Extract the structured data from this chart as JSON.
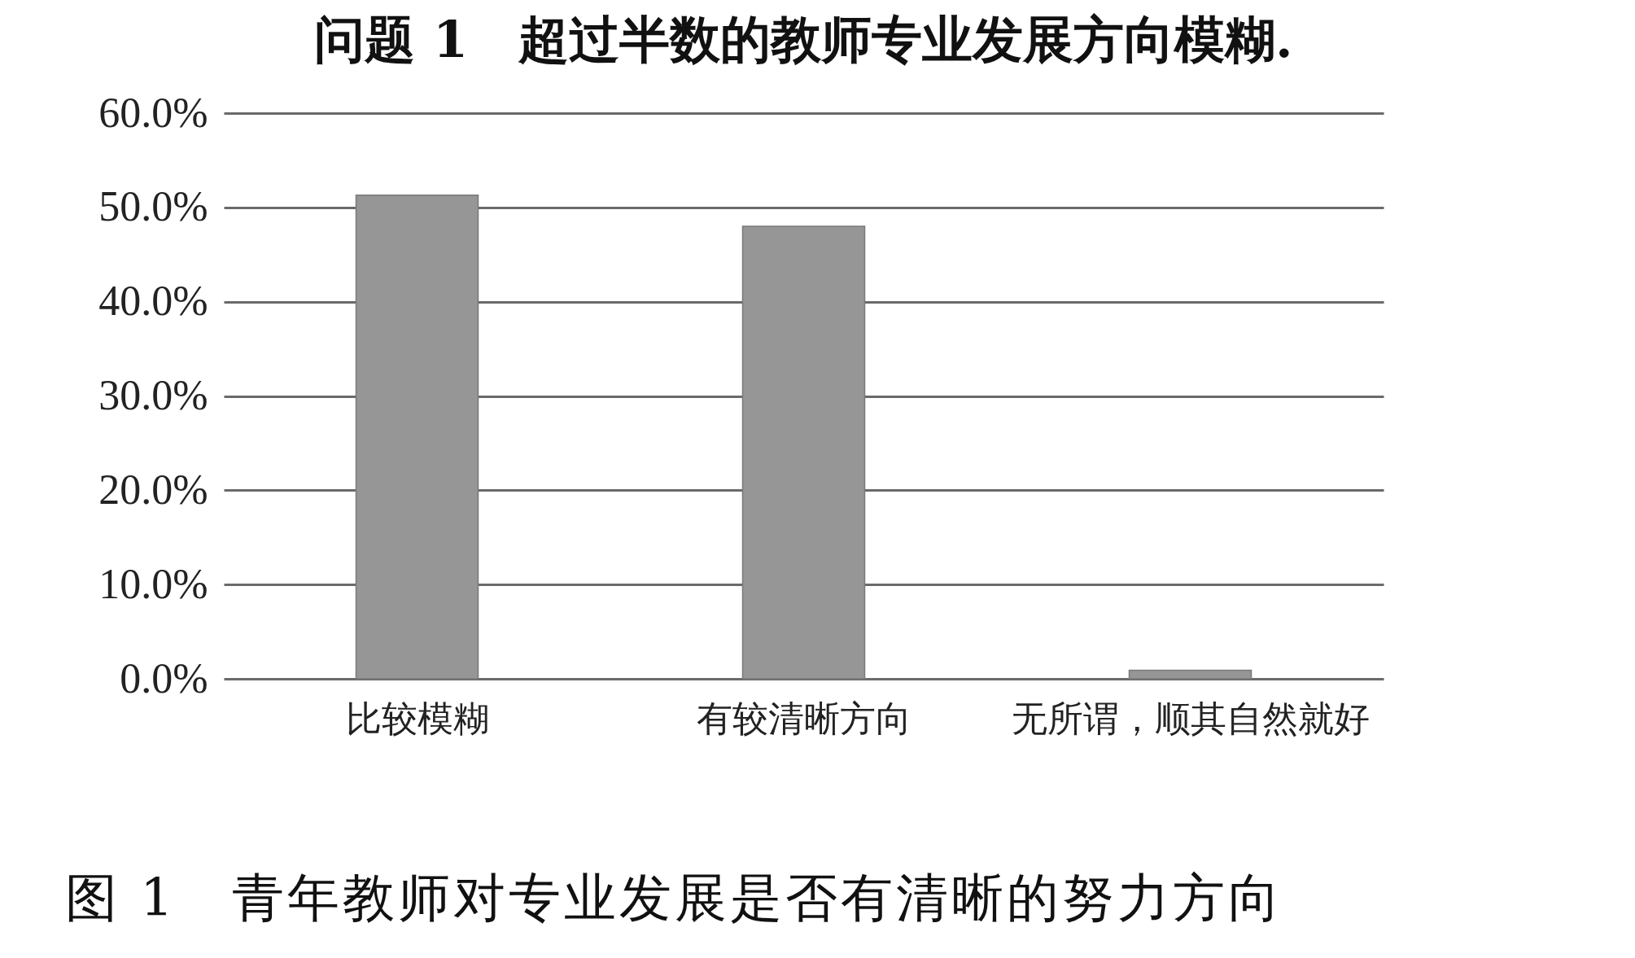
{
  "chart_data": {
    "type": "bar",
    "title": "问题 1　超过半数的教师专业发展方向模糊.",
    "categories": [
      "比较模糊",
      "有较清晰方向",
      "无所谓，顺其自然就好"
    ],
    "values": [
      51.3,
      48.0,
      0.9
    ],
    "color": "#969696",
    "ylim": [
      0,
      60
    ],
    "yticks": [
      {
        "value": 0,
        "label": "0.0%"
      },
      {
        "value": 10,
        "label": "10.0%"
      },
      {
        "value": 20,
        "label": "20.0%"
      },
      {
        "value": 30,
        "label": "30.0%"
      },
      {
        "value": 40,
        "label": "40.0%"
      },
      {
        "value": 50,
        "label": "50.0%"
      },
      {
        "value": 60,
        "label": "60.0%"
      }
    ],
    "grid": "y",
    "annotations": [
      "图 1　青年教师对专业发展是否有清晰的努力方向"
    ]
  }
}
